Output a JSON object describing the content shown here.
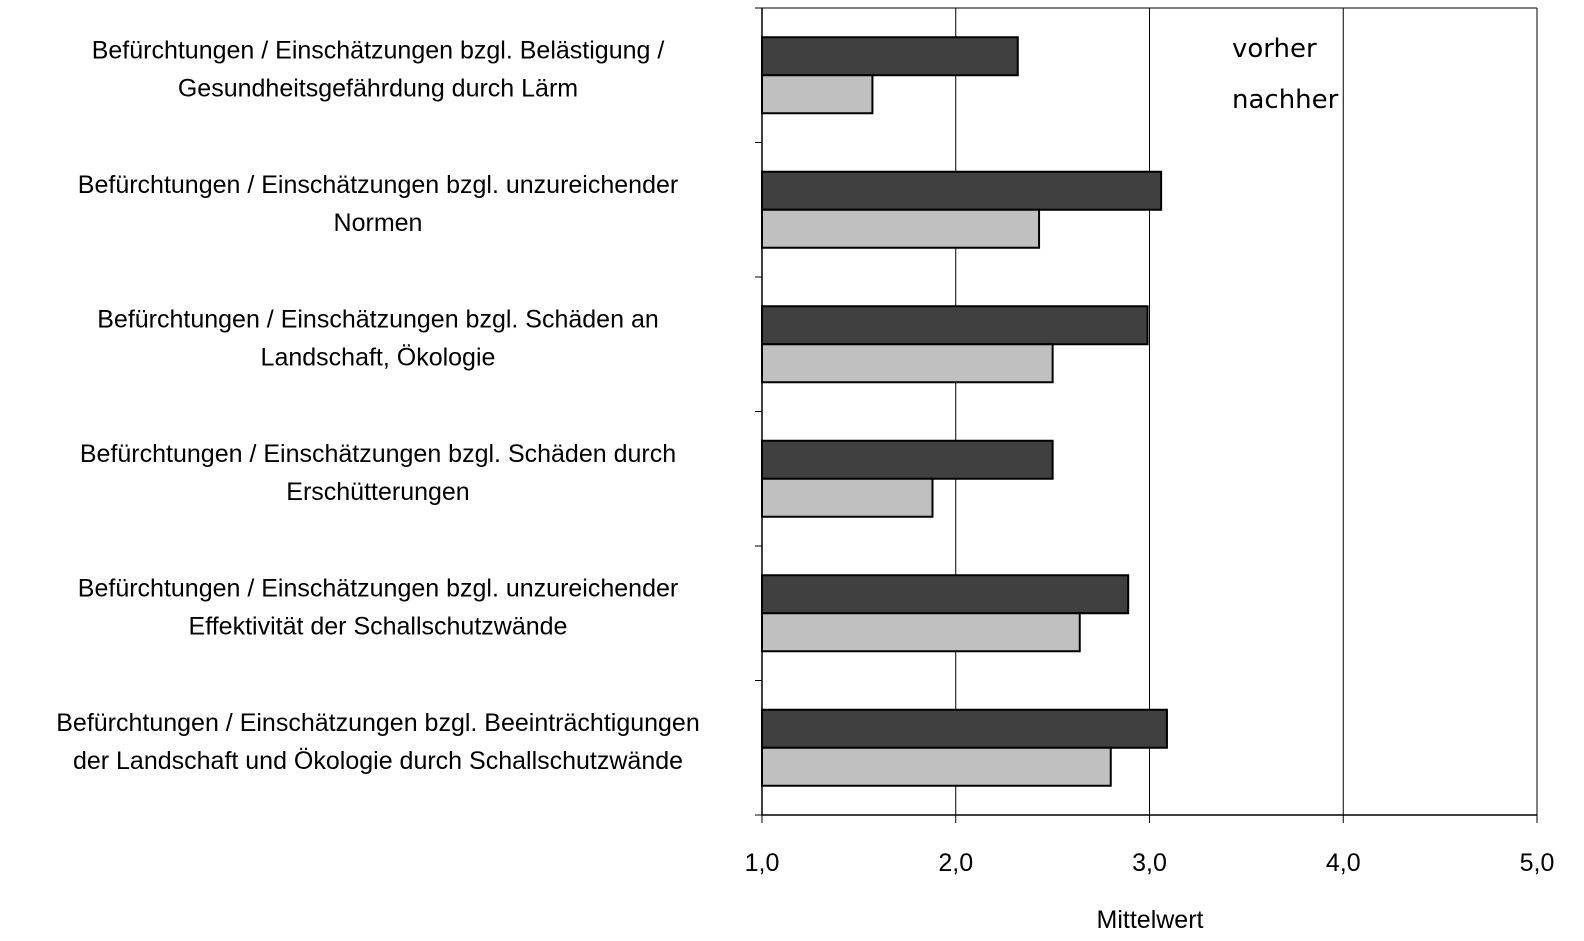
{
  "chart_data": {
    "type": "bar",
    "orientation": "horizontal",
    "categories": [
      [
        "Befürchtungen / Einschätzungen bzgl. Belästigung /",
        "Gesundheitsgefährdung durch Lärm"
      ],
      [
        "Befürchtungen / Einschätzungen bzgl. unzureichender",
        "Normen"
      ],
      [
        "Befürchtungen / Einschätzungen bzgl. Schäden an",
        "Landschaft, Ökologie"
      ],
      [
        "Befürchtungen / Einschätzungen bzgl. Schäden durch",
        "Erschütterungen"
      ],
      [
        "Befürchtungen / Einschätzungen bzgl. unzureichender",
        "Effektivität der Schallschutzwände"
      ],
      [
        "Befürchtungen / Einschätzungen bzgl. Beeinträchtigungen",
        "der Landschaft und Ökologie durch Schallschutzwände"
      ]
    ],
    "series": [
      {
        "name": "vorher",
        "color": "#404040",
        "values": [
          2.32,
          3.06,
          2.99,
          2.5,
          2.89,
          3.09
        ]
      },
      {
        "name": "nachher",
        "color": "#c0c0c0",
        "values": [
          1.57,
          2.43,
          2.5,
          1.88,
          2.64,
          2.8
        ]
      }
    ],
    "xlim": [
      1.0,
      5.0
    ],
    "xticks": [
      1.0,
      2.0,
      3.0,
      4.0,
      5.0
    ],
    "xtick_labels": [
      "1,0",
      "2,0",
      "3,0",
      "4,0",
      "5,0"
    ],
    "xlabel": "Mittelwert",
    "ylabel": "",
    "title": "",
    "grid": "vertical",
    "legend_position": "top-right"
  }
}
